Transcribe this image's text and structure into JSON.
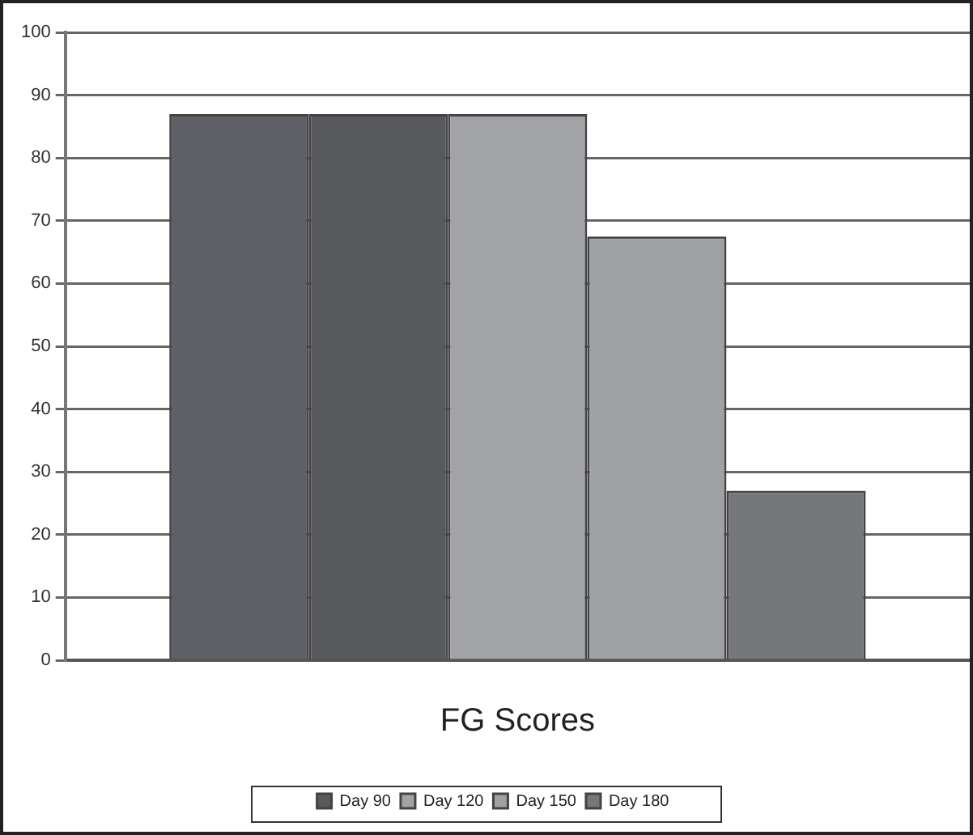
{
  "chart_data": {
    "type": "bar",
    "categories": [
      "FG Scores"
    ],
    "series": [
      {
        "color": "#5f6065",
        "values": [
          87
        ]
      },
      {
        "name": "Day 90",
        "color": "#58595d",
        "values": [
          87
        ]
      },
      {
        "name": "Day 120",
        "color": "#a2a3a7",
        "values": [
          87
        ]
      },
      {
        "name": "Day 150",
        "color": "#a0a1a5",
        "values": [
          67.5
        ]
      },
      {
        "name": "Day 180",
        "color": "#76777b",
        "values": [
          27
        ]
      }
    ],
    "ylim": [
      0,
      100
    ],
    "yticks": [
      0,
      10,
      20,
      30,
      40,
      50,
      60,
      70,
      80,
      90,
      100
    ],
    "grid": "y",
    "legend": "bottom"
  }
}
